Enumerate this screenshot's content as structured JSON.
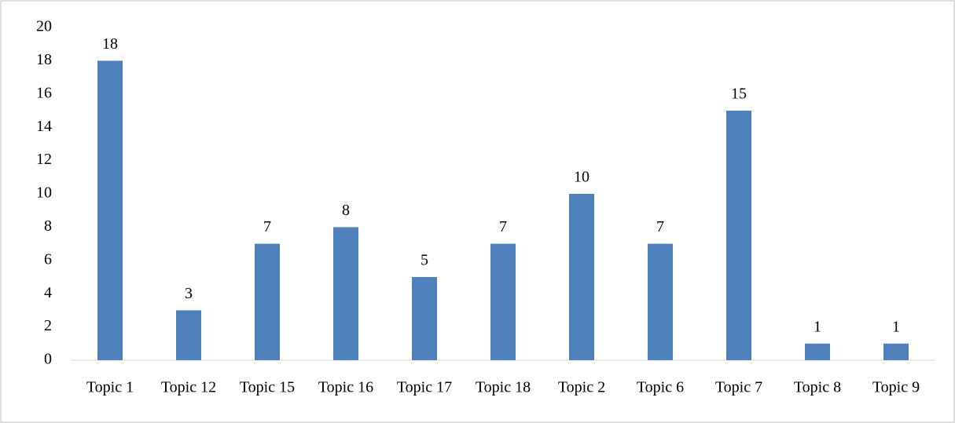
{
  "chart_data": {
    "type": "bar",
    "categories": [
      "Topic 1",
      "Topic 12",
      "Topic 15",
      "Topic 16",
      "Topic 17",
      "Topic 18",
      "Topic 2",
      "Topic 6",
      "Topic 7",
      "Topic 8",
      "Topic 9"
    ],
    "values": [
      18,
      3,
      7,
      8,
      5,
      7,
      10,
      7,
      15,
      1,
      1
    ],
    "color": "#4f81bd",
    "ylim": [
      0,
      20
    ],
    "yticks": [
      0,
      2,
      4,
      6,
      8,
      10,
      12,
      14,
      16,
      18,
      20
    ],
    "grid": false
  }
}
